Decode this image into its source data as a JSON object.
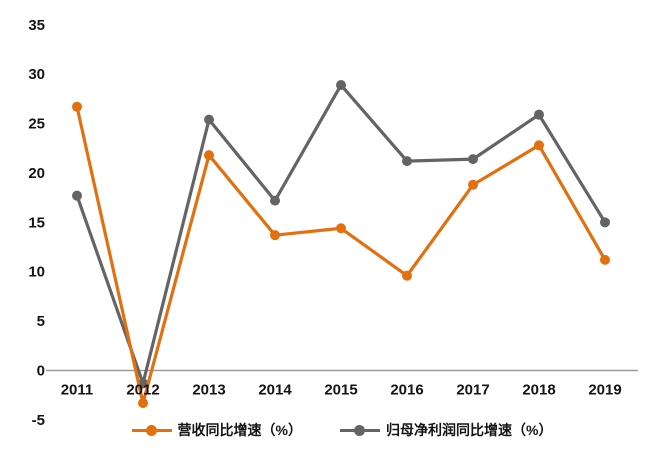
{
  "chart_data": {
    "type": "line",
    "title": "",
    "xlabel": "",
    "ylabel": "",
    "categories": [
      "2011",
      "2012",
      "2013",
      "2014",
      "2015",
      "2016",
      "2017",
      "2018",
      "2019"
    ],
    "series": [
      {
        "name": "营收同比增速（%）",
        "color": "#E2700F",
        "values": [
          26.7,
          -3.3,
          21.8,
          13.7,
          14.4,
          9.6,
          18.8,
          22.8,
          11.2
        ]
      },
      {
        "name": "归母净利润同比增速（%）",
        "color": "#646464",
        "values": [
          17.7,
          -1.3,
          25.4,
          17.2,
          28.9,
          21.2,
          21.4,
          25.9,
          15.0
        ]
      }
    ],
    "y_ticks": [
      35,
      30,
      25,
      20,
      15,
      10,
      5,
      0,
      -5
    ],
    "ylim": [
      -5,
      35
    ],
    "grid": false,
    "legend_position": "bottom",
    "axis_line_color": "#9B9B9B",
    "text_color": "#141414"
  }
}
